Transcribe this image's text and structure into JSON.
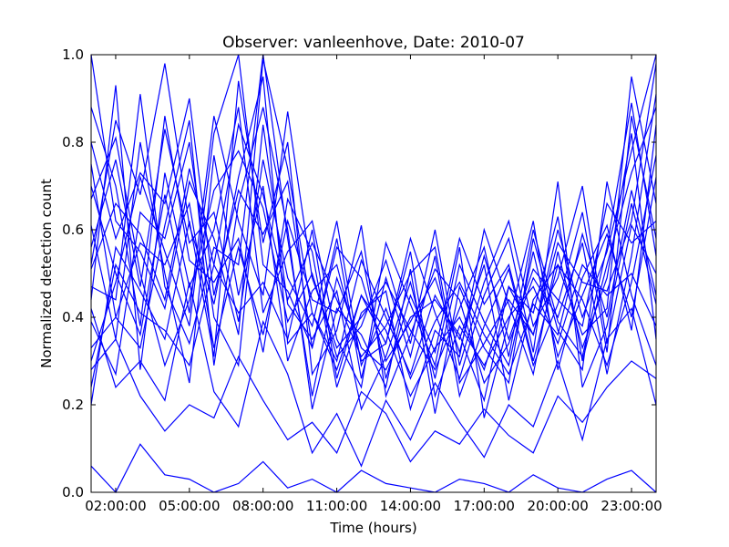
{
  "chart_data": {
    "type": "line",
    "title": "Observer: vanleenhove, Date: 2010-07",
    "xlabel": "Time (hours)",
    "ylabel": "Normalized detection count",
    "xlim": [
      1,
      24
    ],
    "ylim": [
      0,
      1
    ],
    "x_ticks": [
      {
        "value": 2,
        "label": "02:00:00"
      },
      {
        "value": 5,
        "label": "05:00:00"
      },
      {
        "value": 8,
        "label": "08:00:00"
      },
      {
        "value": 11,
        "label": "11:00:00"
      },
      {
        "value": 14,
        "label": "14:00:00"
      },
      {
        "value": 17,
        "label": "17:00:00"
      },
      {
        "value": 20,
        "label": "20:00:00"
      },
      {
        "value": 23,
        "label": "23:00:00"
      }
    ],
    "y_ticks": [
      {
        "value": 0,
        "label": "0.0"
      },
      {
        "value": 0.2,
        "label": "0.2"
      },
      {
        "value": 0.4,
        "label": "0.4"
      },
      {
        "value": 0.6,
        "label": "0.6"
      },
      {
        "value": 0.8,
        "label": "0.8"
      },
      {
        "value": 1.0,
        "label": "1.0"
      }
    ],
    "line_color": "#0000ff",
    "grid": false,
    "legend": "none",
    "x": [
      1,
      2,
      3,
      4,
      5,
      6,
      7,
      8,
      9,
      10,
      11,
      12,
      13,
      14,
      15,
      16,
      17,
      18,
      19,
      20,
      21,
      22,
      23,
      24
    ],
    "series": [
      {
        "values": [
          0.52,
          0.85,
          0.68,
          0.98,
          0.61,
          0.43,
          0.72,
          0.95,
          0.34,
          0.41,
          0.28,
          0.45,
          0.37,
          0.22,
          0.33,
          0.4,
          0.28,
          0.47,
          0.36,
          0.6,
          0.4,
          0.55,
          0.78,
          1.0
        ]
      },
      {
        "values": [
          0.3,
          0.48,
          0.72,
          0.55,
          0.38,
          0.82,
          1.0,
          0.52,
          0.46,
          0.33,
          0.58,
          0.26,
          0.49,
          0.31,
          0.54,
          0.22,
          0.38,
          0.51,
          0.29,
          0.43,
          0.64,
          0.32,
          0.86,
          0.58
        ]
      },
      {
        "values": [
          0.75,
          0.4,
          0.33,
          0.61,
          0.85,
          0.29,
          0.66,
          0.88,
          0.6,
          0.19,
          0.42,
          0.36,
          0.24,
          0.51,
          0.18,
          0.47,
          0.33,
          0.25,
          0.58,
          0.37,
          0.28,
          0.71,
          0.45,
          0.29
        ]
      },
      {
        "values": [
          1.0,
          0.62,
          0.55,
          0.42,
          0.71,
          0.58,
          0.36,
          0.99,
          0.74,
          0.41,
          0.3,
          0.53,
          0.4,
          0.27,
          0.45,
          0.35,
          0.52,
          0.21,
          0.44,
          0.52,
          0.36,
          0.42,
          0.95,
          0.66
        ]
      },
      {
        "values": [
          0.44,
          0.93,
          0.28,
          0.73,
          0.47,
          0.6,
          0.88,
          0.41,
          0.55,
          0.62,
          0.35,
          0.24,
          0.57,
          0.43,
          0.29,
          0.56,
          0.17,
          0.39,
          0.62,
          0.28,
          0.49,
          0.61,
          0.37,
          0.84
        ]
      },
      {
        "values": [
          0.61,
          0.35,
          0.8,
          0.5,
          0.25,
          0.77,
          0.45,
          0.7,
          0.3,
          0.46,
          0.52,
          0.3,
          0.34,
          0.58,
          0.41,
          0.26,
          0.45,
          0.58,
          0.32,
          0.71,
          0.24,
          0.38,
          0.66,
          0.43
        ]
      },
      {
        "values": [
          0.2,
          0.56,
          0.46,
          0.35,
          0.62,
          0.31,
          0.94,
          0.57,
          0.8,
          0.27,
          0.37,
          0.61,
          0.22,
          0.36,
          0.51,
          0.44,
          0.25,
          0.34,
          0.49,
          0.4,
          0.57,
          0.27,
          0.54,
          0.91
        ]
      },
      {
        "values": [
          0.88,
          0.7,
          0.38,
          0.86,
          0.53,
          0.48,
          0.58,
          0.32,
          0.67,
          0.55,
          0.24,
          0.41,
          0.46,
          0.19,
          0.37,
          0.31,
          0.6,
          0.43,
          0.27,
          0.55,
          0.33,
          0.49,
          0.82,
          0.35
        ]
      },
      {
        "values": [
          0.39,
          0.27,
          0.64,
          0.58,
          0.8,
          0.4,
          0.29,
          0.84,
          0.43,
          0.35,
          0.46,
          0.19,
          0.31,
          0.48,
          0.26,
          0.52,
          0.39,
          0.29,
          0.55,
          0.31,
          0.45,
          0.59,
          0.4,
          0.72
        ]
      },
      {
        "values": [
          0.67,
          0.81,
          0.5,
          0.29,
          0.44,
          0.69,
          0.78,
          0.65,
          0.39,
          0.5,
          0.31,
          0.38,
          0.53,
          0.34,
          0.6,
          0.29,
          0.48,
          0.62,
          0.38,
          0.49,
          0.7,
          0.34,
          0.61,
          0.5
        ]
      },
      {
        "values": [
          0.47,
          0.44,
          0.91,
          0.47,
          0.34,
          0.56,
          0.52,
          1.0,
          0.58,
          0.22,
          0.49,
          0.33,
          0.28,
          0.4,
          0.44,
          0.36,
          0.21,
          0.47,
          0.41,
          0.63,
          0.3,
          0.52,
          0.73,
          0.88
        ]
      },
      {
        "values": [
          0.06,
          0.0,
          0.11,
          0.04,
          0.03,
          0.0,
          0.02,
          0.07,
          0.01,
          0.03,
          0.0,
          0.05,
          0.02,
          0.01,
          0.0,
          0.03,
          0.02,
          0.0,
          0.04,
          0.01,
          0.0,
          0.03,
          0.05,
          0.0
        ]
      },
      {
        "values": [
          0.28,
          0.35,
          0.22,
          0.14,
          0.2,
          0.17,
          0.31,
          0.21,
          0.12,
          0.16,
          0.09,
          0.23,
          0.18,
          0.07,
          0.14,
          0.11,
          0.19,
          0.13,
          0.09,
          0.22,
          0.16,
          0.24,
          0.3,
          0.26
        ]
      },
      {
        "values": [
          0.42,
          0.24,
          0.3,
          0.21,
          0.48,
          0.23,
          0.15,
          0.39,
          0.27,
          0.09,
          0.18,
          0.06,
          0.21,
          0.12,
          0.25,
          0.16,
          0.08,
          0.2,
          0.15,
          0.3,
          0.12,
          0.35,
          0.42,
          0.2
        ]
      },
      {
        "values": [
          0.24,
          0.52,
          0.41,
          0.37,
          0.29,
          0.52,
          0.41,
          0.48,
          0.35,
          0.6,
          0.26,
          0.45,
          0.34,
          0.55,
          0.22,
          0.38,
          0.29,
          0.4,
          0.47,
          0.34,
          0.52,
          0.45,
          0.5,
          0.38
        ]
      },
      {
        "values": [
          0.8,
          0.58,
          0.73,
          0.66,
          0.9,
          0.45,
          0.69,
          0.59,
          0.71,
          0.33,
          0.56,
          0.49,
          0.3,
          0.39,
          0.49,
          0.32,
          0.54,
          0.35,
          0.51,
          0.44,
          0.38,
          0.66,
          0.57,
          0.62
        ]
      },
      {
        "values": [
          0.56,
          0.76,
          0.47,
          0.83,
          0.57,
          0.64,
          0.39,
          0.76,
          0.49,
          0.38,
          0.62,
          0.29,
          0.42,
          0.26,
          0.39,
          0.48,
          0.36,
          0.27,
          0.43,
          0.36,
          0.59,
          0.4,
          0.69,
          0.45
        ]
      },
      {
        "values": [
          0.33,
          0.4,
          0.57,
          0.52,
          0.66,
          0.33,
          0.56,
          0.36,
          0.62,
          0.44,
          0.41,
          0.55,
          0.26,
          0.45,
          0.32,
          0.58,
          0.43,
          0.52,
          0.3,
          0.52,
          0.44,
          0.29,
          0.48,
          0.77
        ]
      },
      {
        "values": [
          0.7,
          0.5,
          0.36,
          0.68,
          0.41,
          0.86,
          0.62,
          0.45,
          0.87,
          0.49,
          0.33,
          0.4,
          0.48,
          0.37,
          0.28,
          0.42,
          0.56,
          0.31,
          0.6,
          0.39,
          0.31,
          0.56,
          0.89,
          0.54
        ]
      },
      {
        "values": [
          0.51,
          0.66,
          0.59,
          0.44,
          0.74,
          0.52,
          0.84,
          0.68,
          0.44,
          0.57,
          0.44,
          0.31,
          0.38,
          0.5,
          0.56,
          0.25,
          0.34,
          0.44,
          0.36,
          0.57,
          0.48,
          0.46,
          0.62,
          0.98
        ]
      }
    ]
  }
}
